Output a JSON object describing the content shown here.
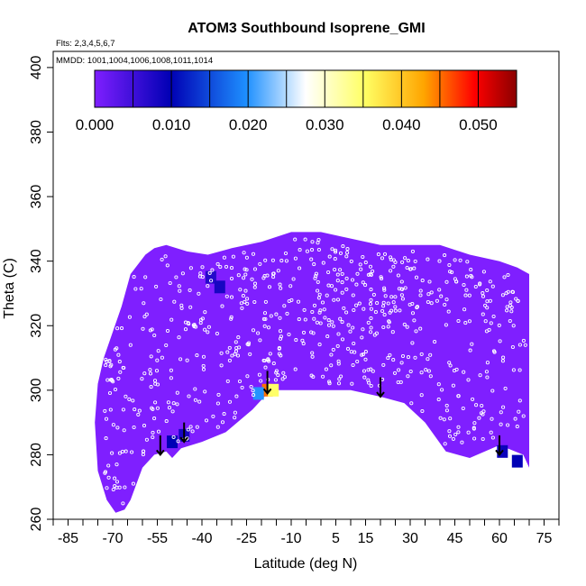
{
  "chart_data": {
    "type": "heatmap",
    "title": "ATOM3 Southbound Isoprene_GMI",
    "flights_label": "Flts: 2,3,4,5,6,7",
    "dates_label": "MMDD: 1001,1004,1006,1008,1011,1014",
    "xlabel": "Latitude (deg N)",
    "ylabel": "Theta (C)",
    "xlim": [
      -90,
      80
    ],
    "ylim": [
      260,
      405
    ],
    "x_ticks": [
      -85,
      -70,
      -55,
      -40,
      -25,
      -10,
      5,
      15,
      30,
      45,
      60,
      75
    ],
    "x_minor_step": 5,
    "y_ticks": [
      260,
      280,
      300,
      320,
      340,
      360,
      380,
      400
    ],
    "colorbar": {
      "min": 0.0,
      "max": 0.055,
      "tick_values": [
        0.0,
        0.01,
        0.02,
        0.03,
        0.04,
        0.05
      ],
      "tick_labels": [
        "0.000",
        "0.010",
        "0.020",
        "0.030",
        "0.040",
        "0.050"
      ],
      "boundaries": [
        0.005,
        0.01,
        0.015,
        0.02,
        0.025,
        0.03,
        0.035,
        0.04,
        0.045,
        0.05
      ],
      "colors": [
        "#7f1fff",
        "#0000b4",
        "#1e90ff",
        "#ffffff",
        "#ffff64",
        "#ffa500",
        "#ff0000",
        "#8b0000"
      ],
      "color_stops": [
        0,
        0.18,
        0.36,
        0.5,
        0.64,
        0.78,
        0.9,
        1.0
      ]
    },
    "field_background_value": 0.0,
    "top_boundary": [
      {
        "lat": -73,
        "theta": 310
      },
      {
        "lat": -70,
        "theta": 318
      },
      {
        "lat": -67,
        "theta": 326
      },
      {
        "lat": -64,
        "theta": 336
      },
      {
        "lat": -59,
        "theta": 342
      },
      {
        "lat": -56,
        "theta": 344
      },
      {
        "lat": -52,
        "theta": 345
      },
      {
        "lat": -45,
        "theta": 343
      },
      {
        "lat": -38,
        "theta": 342
      },
      {
        "lat": -30,
        "theta": 344
      },
      {
        "lat": -20,
        "theta": 346
      },
      {
        "lat": -10,
        "theta": 349
      },
      {
        "lat": 0,
        "theta": 349
      },
      {
        "lat": 10,
        "theta": 347
      },
      {
        "lat": 20,
        "theta": 345
      },
      {
        "lat": 30,
        "theta": 345
      },
      {
        "lat": 40,
        "theta": 345
      },
      {
        "lat": 50,
        "theta": 342
      },
      {
        "lat": 60,
        "theta": 340
      },
      {
        "lat": 66,
        "theta": 338
      },
      {
        "lat": 70,
        "theta": 336
      }
    ],
    "bottom_boundary": [
      {
        "lat": 70,
        "theta": 276
      },
      {
        "lat": 68,
        "theta": 280
      },
      {
        "lat": 60,
        "theta": 283
      },
      {
        "lat": 50,
        "theta": 279
      },
      {
        "lat": 42,
        "theta": 281
      },
      {
        "lat": 35,
        "theta": 290
      },
      {
        "lat": 28,
        "theta": 296
      },
      {
        "lat": 20,
        "theta": 298
      },
      {
        "lat": 10,
        "theta": 300
      },
      {
        "lat": 0,
        "theta": 300
      },
      {
        "lat": -10,
        "theta": 300
      },
      {
        "lat": -15,
        "theta": 300
      },
      {
        "lat": -19,
        "theta": 298
      },
      {
        "lat": -23,
        "theta": 294
      },
      {
        "lat": -32,
        "theta": 287
      },
      {
        "lat": -40,
        "theta": 284
      },
      {
        "lat": -47,
        "theta": 282
      },
      {
        "lat": -50,
        "theta": 279
      },
      {
        "lat": -52,
        "theta": 281
      },
      {
        "lat": -56,
        "theta": 280
      },
      {
        "lat": -60,
        "theta": 276
      },
      {
        "lat": -64,
        "theta": 266
      },
      {
        "lat": -66,
        "theta": 263
      },
      {
        "lat": -69,
        "theta": 262
      },
      {
        "lat": -72,
        "theta": 266
      },
      {
        "lat": -75,
        "theta": 275
      },
      {
        "lat": -76,
        "theta": 290
      },
      {
        "lat": -75,
        "theta": 302
      },
      {
        "lat": -73,
        "theta": 310
      }
    ],
    "features": [
      {
        "lat": -37,
        "theta": 335,
        "value": 0.007
      },
      {
        "lat": -34,
        "theta": 332,
        "value": 0.008
      },
      {
        "lat": -18,
        "theta": 300,
        "value": 0.045
      },
      {
        "lat": -16,
        "theta": 300,
        "value": 0.035
      },
      {
        "lat": -21,
        "theta": 299,
        "value": 0.02
      },
      {
        "lat": -46,
        "theta": 286,
        "value": 0.008
      },
      {
        "lat": -50,
        "theta": 284,
        "value": 0.01
      },
      {
        "lat": 61,
        "theta": 281,
        "value": 0.009
      },
      {
        "lat": 66,
        "theta": 278,
        "value": 0.01
      }
    ],
    "arrows": [
      {
        "lat": -54,
        "theta_start": 286,
        "theta_end": 280
      },
      {
        "lat": -46,
        "theta_start": 290,
        "theta_end": 284
      },
      {
        "lat": -18,
        "theta_start": 306,
        "theta_end": 299
      },
      {
        "lat": 20,
        "theta_start": 304,
        "theta_end": 298
      },
      {
        "lat": 60,
        "theta_start": 286,
        "theta_end": 280
      }
    ]
  }
}
